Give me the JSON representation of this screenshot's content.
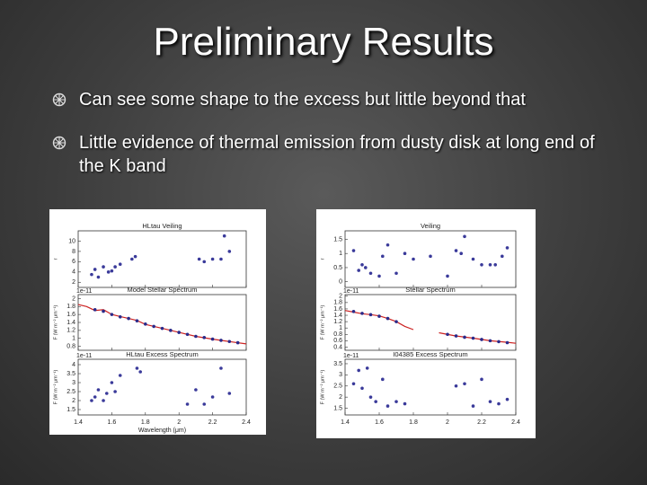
{
  "slide": {
    "title": "Preliminary Results",
    "bullets": [
      "Can see some shape to the excess but little beyond that",
      "Little evidence of thermal emission from dusty disk at long end of the K band"
    ]
  },
  "figures": [
    {
      "xlim": [
        1.4,
        2.4
      ],
      "xticks": [
        1.4,
        1.6,
        1.8,
        2.0,
        2.2,
        2.4
      ],
      "xlabel": "Wavelength (μm)",
      "panels": [
        {
          "title": "HLtau Veiling",
          "ylabel": "r",
          "ylim": [
            1,
            12
          ],
          "yticks": [
            2,
            4,
            6,
            8,
            10
          ],
          "series": [
            {
              "kind": "points",
              "color": "#3a3a9a",
              "x": [
                1.48,
                1.5,
                1.52,
                1.55,
                1.58,
                1.6,
                1.62,
                1.65,
                1.72,
                1.74,
                2.12,
                2.15,
                2.2,
                2.25,
                2.27,
                2.3
              ],
              "y": [
                3.5,
                4.5,
                3,
                5,
                4,
                4.2,
                5,
                5.5,
                6.5,
                7,
                6.5,
                6,
                6.5,
                6.5,
                11,
                8
              ]
            }
          ]
        },
        {
          "title": "Model Stellar Spectrum",
          "offset_label": "1e-11",
          "ylabel": "F (W m⁻² μm⁻¹)",
          "ylim": [
            0.7,
            2.1
          ],
          "yticks": [
            0.8,
            1.0,
            1.2,
            1.4,
            1.6,
            1.8,
            2.0
          ],
          "series": [
            {
              "kind": "line",
              "color": "#cc2222",
              "x": [
                1.4,
                1.45,
                1.5,
                1.55,
                1.6,
                1.65,
                1.7,
                1.75,
                1.8,
                1.9,
                2.0,
                2.1,
                2.2,
                2.3,
                2.4
              ],
              "y": [
                1.85,
                1.8,
                1.7,
                1.72,
                1.6,
                1.55,
                1.5,
                1.45,
                1.35,
                1.25,
                1.15,
                1.05,
                0.98,
                0.92,
                0.86
              ]
            },
            {
              "kind": "points",
              "color": "#2a2a8a",
              "x": [
                1.5,
                1.55,
                1.6,
                1.65,
                1.7,
                1.75,
                1.8,
                1.85,
                1.9,
                1.95,
                2.0,
                2.05,
                2.1,
                2.15,
                2.2,
                2.25,
                2.3,
                2.35
              ],
              "y": [
                1.72,
                1.68,
                1.6,
                1.54,
                1.5,
                1.44,
                1.36,
                1.3,
                1.25,
                1.2,
                1.15,
                1.1,
                1.05,
                1.02,
                0.98,
                0.95,
                0.92,
                0.89
              ]
            }
          ]
        },
        {
          "title": "HLtau Excess Spectrum",
          "offset_label": "1e-11",
          "ylabel": "F (W m⁻² μm⁻¹)",
          "ylim": [
            1.2,
            4.3
          ],
          "yticks": [
            1.5,
            2.0,
            2.5,
            3.0,
            3.5,
            4.0
          ],
          "series": [
            {
              "kind": "points",
              "color": "#3a3a9a",
              "x": [
                1.48,
                1.5,
                1.52,
                1.55,
                1.57,
                1.6,
                1.62,
                1.65,
                1.75,
                1.77,
                2.05,
                2.1,
                2.15,
                2.2,
                2.25,
                2.3
              ],
              "y": [
                2.0,
                2.2,
                2.6,
                2.0,
                2.4,
                3.0,
                2.5,
                3.4,
                3.8,
                3.6,
                1.8,
                2.6,
                1.8,
                2.2,
                3.8,
                2.4
              ]
            }
          ]
        }
      ]
    },
    {
      "xlim": [
        1.4,
        2.4
      ],
      "xticks": [
        1.4,
        1.6,
        1.8,
        2.0,
        2.2,
        2.4
      ],
      "panels": [
        {
          "title": "Veiling",
          "ylabel": "r",
          "ylim": [
            -0.2,
            1.8
          ],
          "yticks": [
            0.0,
            0.5,
            1.0,
            1.5
          ],
          "series": [
            {
              "kind": "points",
              "color": "#3a3a9a",
              "x": [
                1.45,
                1.48,
                1.5,
                1.52,
                1.55,
                1.6,
                1.62,
                1.65,
                1.7,
                1.75,
                1.8,
                1.9,
                2.0,
                2.05,
                2.08,
                2.1,
                2.15,
                2.2,
                2.25,
                2.28,
                2.32,
                2.35
              ],
              "y": [
                1.1,
                0.4,
                0.6,
                0.5,
                0.3,
                0.2,
                0.9,
                1.3,
                0.3,
                1.0,
                0.8,
                0.9,
                0.2,
                1.1,
                1.0,
                1.6,
                0.8,
                0.6,
                0.6,
                0.6,
                0.9,
                1.2
              ]
            }
          ]
        },
        {
          "title": "Stellar Spectrum",
          "offset_label": "1e-11",
          "ylabel": "F (W m⁻² μm⁻¹)",
          "ylim": [
            0.3,
            2.05
          ],
          "yticks": [
            0.4,
            0.6,
            0.8,
            1.0,
            1.2,
            1.4,
            1.6,
            1.8,
            2.0
          ],
          "series": [
            {
              "kind": "line",
              "color": "#cc2222",
              "x": [
                1.4,
                1.45,
                1.5,
                1.55,
                1.6,
                1.65,
                1.7,
                1.75,
                1.8,
                1.85,
                1.95,
                2.05,
                2.15,
                2.25,
                2.35,
                2.4
              ],
              "y": [
                1.55,
                1.5,
                1.45,
                1.42,
                1.38,
                1.3,
                1.2,
                1.05,
                0.95,
                null,
                0.85,
                0.75,
                0.68,
                0.6,
                0.55,
                0.52
              ]
            },
            {
              "kind": "points",
              "color": "#2a2a8a",
              "x": [
                1.45,
                1.5,
                1.55,
                1.6,
                1.65,
                1.7,
                2.0,
                2.05,
                2.1,
                2.15,
                2.2,
                2.25,
                2.3,
                2.35
              ],
              "y": [
                1.52,
                1.46,
                1.42,
                1.37,
                1.3,
                1.2,
                0.8,
                0.75,
                0.71,
                0.68,
                0.64,
                0.6,
                0.57,
                0.54
              ]
            }
          ]
        },
        {
          "title": "I04385 Excess Spectrum",
          "offset_label": "1e-11",
          "ylabel": "F (W m⁻² μm⁻¹)",
          "ylim": [
            1.2,
            3.7
          ],
          "yticks": [
            1.5,
            2.0,
            2.5,
            3.0,
            3.5
          ],
          "series": [
            {
              "kind": "points",
              "color": "#3a3a9a",
              "x": [
                1.45,
                1.48,
                1.5,
                1.53,
                1.55,
                1.58,
                1.62,
                1.65,
                1.7,
                1.75,
                2.05,
                2.1,
                2.15,
                2.2,
                2.25,
                2.3,
                2.35
              ],
              "y": [
                2.6,
                3.2,
                2.4,
                3.3,
                2.0,
                1.8,
                2.8,
                1.6,
                1.8,
                1.7,
                2.5,
                2.6,
                1.6,
                2.8,
                1.8,
                1.7,
                1.9
              ]
            }
          ]
        }
      ]
    }
  ]
}
